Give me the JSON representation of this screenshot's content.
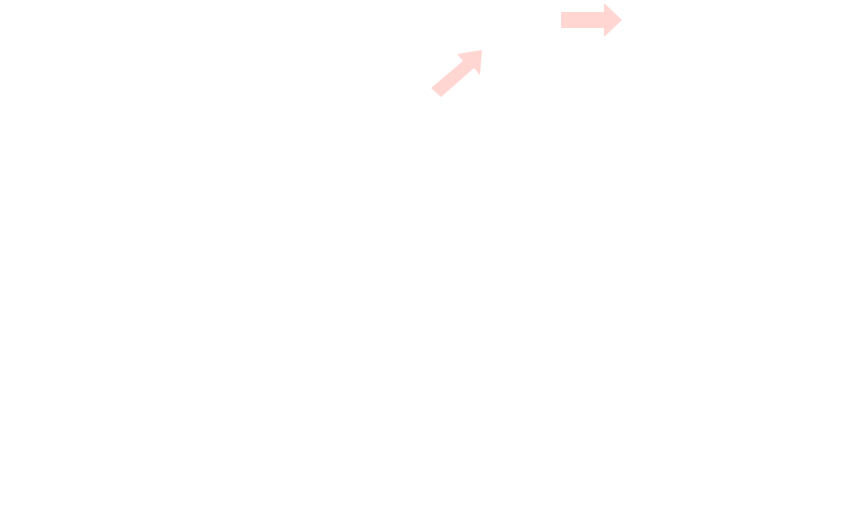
{
  "background_color": "#ffffff",
  "arrows": [
    {
      "name": "arrow-right-icon",
      "direction": "right",
      "color": "#ffd6d2"
    },
    {
      "name": "arrow-up-right-icon",
      "direction": "up-right",
      "color": "#ffd6d2"
    }
  ]
}
